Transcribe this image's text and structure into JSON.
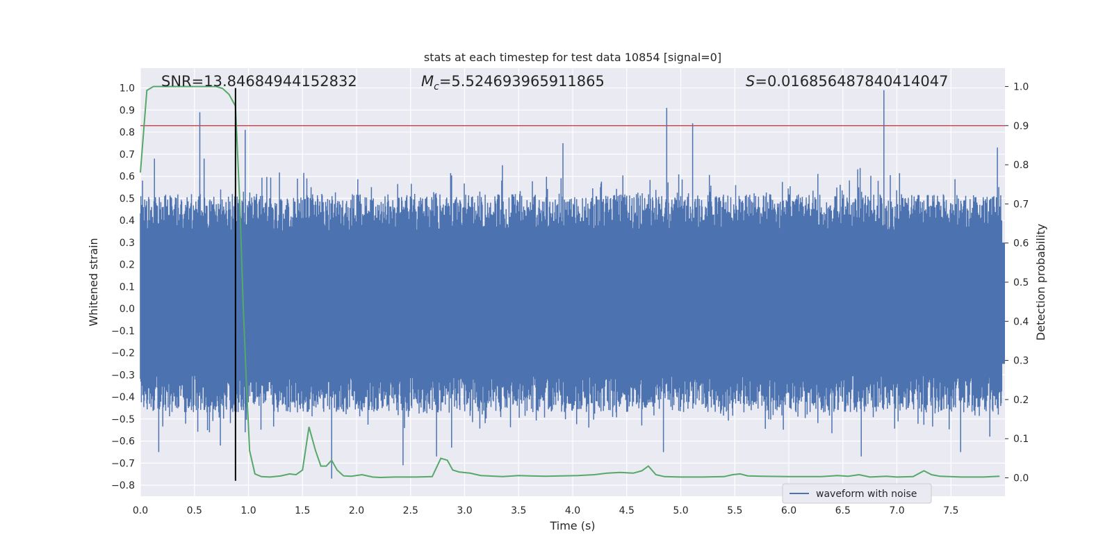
{
  "chart_data": {
    "type": "line",
    "title": "stats at each timestep for test data 10854 [signal=0]",
    "xlabel": "Time (s)",
    "ylabel": "Whitened strain",
    "ylabel_right": "Detection probability",
    "xlim": [
      0.0,
      8.0
    ],
    "ylim": [
      -0.85,
      1.09
    ],
    "ylim_right": [
      -0.047,
      1.047
    ],
    "x_ticks": [
      "0.0",
      "0.5",
      "1.0",
      "1.5",
      "2.0",
      "2.5",
      "3.0",
      "3.5",
      "4.0",
      "4.5",
      "5.0",
      "5.5",
      "6.0",
      "6.5",
      "7.0",
      "7.5"
    ],
    "y_ticks": [
      "1.0",
      "0.9",
      "0.8",
      "0.7",
      "0.6",
      "0.5",
      "0.4",
      "0.3",
      "0.2",
      "0.1",
      "0.0",
      "−0.1",
      "−0.2",
      "−0.3",
      "−0.4",
      "−0.5",
      "−0.6",
      "−0.7",
      "−0.8"
    ],
    "y_ticks_right": [
      "1.0",
      "0.9",
      "0.8",
      "0.7",
      "0.6",
      "0.5",
      "0.4",
      "0.3",
      "0.2",
      "0.1",
      "0.0"
    ],
    "annotations": {
      "snr": "SNR=13.84684944152832",
      "mc_symbol": "M",
      "mc_sub": "c",
      "mc_value": "=5.524693965911865",
      "s_symbol": "S",
      "s_value": "=0.016856487840414047"
    },
    "legend": {
      "label": "waveform with noise",
      "placement": "lower-right"
    },
    "grid": true,
    "colors": {
      "background": "#eaeaf2",
      "grid": "#ffffff",
      "waveform": "#4c72b0",
      "probability": "#55a868",
      "threshold": "#c44e52",
      "marker": "#000000"
    },
    "threshold_right": 0.9,
    "marker_time": 0.88,
    "marker_strain_range": [
      -0.78,
      1.0
    ],
    "waveform": {
      "name": "waveform with noise",
      "base_band": [
        -0.25,
        0.3
      ],
      "peaks": [
        [
          0.02,
          0.58
        ],
        [
          0.13,
          0.68
        ],
        [
          0.55,
          0.89
        ],
        [
          0.59,
          0.68
        ],
        [
          0.97,
          0.81
        ],
        [
          1.54,
          0.59
        ],
        [
          3.35,
          0.65
        ],
        [
          3.91,
          0.75
        ],
        [
          4.87,
          0.91
        ],
        [
          5.11,
          0.84
        ],
        [
          6.88,
          0.99
        ],
        [
          7.93,
          0.73
        ]
      ],
      "troughs": [
        [
          0.17,
          -0.65
        ],
        [
          0.74,
          -0.62
        ],
        [
          0.97,
          -0.56
        ],
        [
          1.77,
          -0.77
        ],
        [
          2.43,
          -0.71
        ],
        [
          2.74,
          -0.67
        ],
        [
          2.88,
          -0.63
        ],
        [
          4.84,
          -0.65
        ],
        [
          6.67,
          -0.67
        ],
        [
          7.59,
          -0.65
        ],
        [
          7.86,
          -0.58
        ]
      ]
    },
    "probability": {
      "x": [
        0.0,
        0.06,
        0.12,
        0.2,
        0.3,
        0.5,
        0.7,
        0.76,
        0.82,
        0.88,
        0.92,
        0.95,
        0.98,
        1.01,
        1.06,
        1.12,
        1.2,
        1.3,
        1.38,
        1.44,
        1.5,
        1.56,
        1.62,
        1.67,
        1.72,
        1.77,
        1.82,
        1.88,
        1.95,
        2.05,
        2.15,
        2.22,
        2.35,
        2.55,
        2.7,
        2.78,
        2.84,
        2.89,
        2.95,
        3.05,
        3.15,
        3.35,
        3.5,
        3.6,
        3.75,
        3.9,
        4.05,
        4.2,
        4.32,
        4.44,
        4.56,
        4.64,
        4.7,
        4.77,
        4.85,
        5.0,
        5.2,
        5.4,
        5.48,
        5.55,
        5.62,
        5.75,
        6.0,
        6.3,
        6.45,
        6.55,
        6.65,
        6.75,
        6.9,
        7.0,
        7.15,
        7.25,
        7.32,
        7.4,
        7.6,
        7.8,
        7.95
      ],
      "y": [
        0.78,
        0.99,
        1.0,
        1.0,
        1.0,
        1.0,
        1.0,
        0.995,
        0.98,
        0.95,
        0.7,
        0.45,
        0.25,
        0.07,
        0.01,
        0.003,
        0.002,
        0.005,
        0.01,
        0.008,
        0.02,
        0.13,
        0.07,
        0.03,
        0.03,
        0.045,
        0.02,
        0.005,
        0.004,
        0.008,
        0.002,
        0.001,
        0.002,
        0.002,
        0.003,
        0.05,
        0.045,
        0.02,
        0.015,
        0.012,
        0.006,
        0.003,
        0.006,
        0.005,
        0.004,
        0.005,
        0.006,
        0.008,
        0.012,
        0.014,
        0.012,
        0.018,
        0.03,
        0.008,
        0.003,
        0.002,
        0.002,
        0.003,
        0.008,
        0.01,
        0.005,
        0.004,
        0.003,
        0.003,
        0.006,
        0.004,
        0.008,
        0.002,
        0.004,
        0.002,
        0.003,
        0.018,
        0.008,
        0.004,
        0.002,
        0.002,
        0.004
      ]
    }
  }
}
